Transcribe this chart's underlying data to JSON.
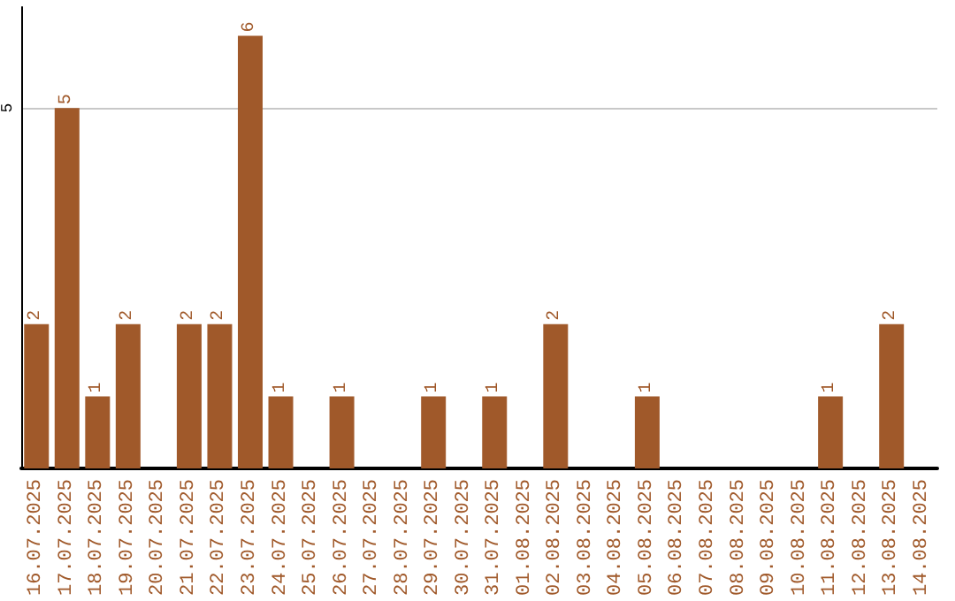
{
  "chart_data": {
    "type": "bar",
    "categories": [
      "16.07.2025",
      "17.07.2025",
      "18.07.2025",
      "19.07.2025",
      "20.07.2025",
      "21.07.2025",
      "22.07.2025",
      "23.07.2025",
      "24.07.2025",
      "25.07.2025",
      "26.07.2025",
      "27.07.2025",
      "28.07.2025",
      "29.07.2025",
      "30.07.2025",
      "31.07.2025",
      "01.08.2025",
      "02.08.2025",
      "03.08.2025",
      "04.08.2025",
      "05.08.2025",
      "06.08.2025",
      "07.08.2025",
      "08.08.2025",
      "09.08.2025",
      "10.08.2025",
      "11.08.2025",
      "12.08.2025",
      "13.08.2025",
      "14.08.2025"
    ],
    "values": [
      2,
      5,
      1,
      2,
      0,
      2,
      2,
      6,
      1,
      0,
      1,
      0,
      0,
      1,
      0,
      1,
      0,
      2,
      0,
      0,
      1,
      0,
      0,
      0,
      0,
      0,
      1,
      0,
      2,
      0
    ],
    "value_labels": [
      "2",
      "5",
      "1",
      "2",
      null,
      "2",
      "2",
      "6",
      "1",
      null,
      "1",
      null,
      null,
      "1",
      null,
      "1",
      null,
      "2",
      null,
      null,
      "1",
      null,
      null,
      null,
      null,
      null,
      "1",
      null,
      "2",
      null
    ],
    "color": "#a0592a",
    "ylim": [
      0,
      6.4
    ],
    "yticks": [
      5
    ],
    "grid": "y"
  }
}
